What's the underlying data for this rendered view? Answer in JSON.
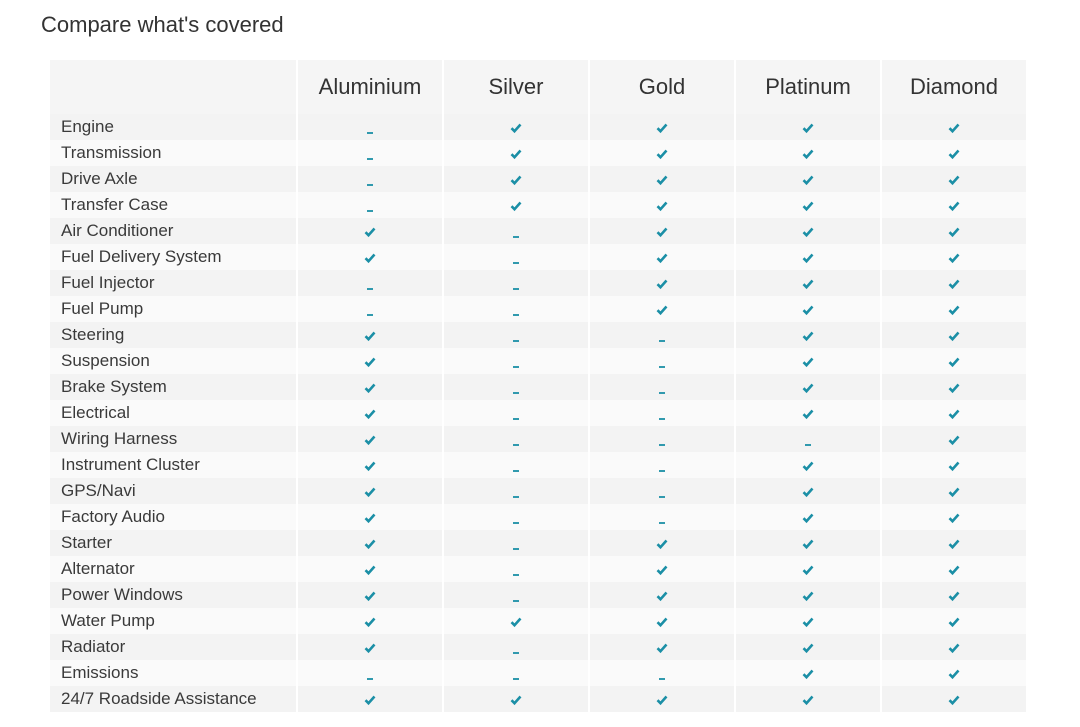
{
  "header": {
    "title": "Compare what's covered"
  },
  "table": {
    "columns": [
      "Aluminium",
      "Silver",
      "Gold",
      "Platinum",
      "Diamond"
    ],
    "rows": [
      {
        "label": "Engine",
        "covered": [
          false,
          true,
          true,
          true,
          true
        ]
      },
      {
        "label": "Transmission",
        "covered": [
          false,
          true,
          true,
          true,
          true
        ]
      },
      {
        "label": "Drive Axle",
        "covered": [
          false,
          true,
          true,
          true,
          true
        ]
      },
      {
        "label": "Transfer Case",
        "covered": [
          false,
          true,
          true,
          true,
          true
        ]
      },
      {
        "label": "Air Conditioner",
        "covered": [
          true,
          false,
          true,
          true,
          true
        ]
      },
      {
        "label": "Fuel Delivery System",
        "covered": [
          true,
          false,
          true,
          true,
          true
        ]
      },
      {
        "label": "Fuel Injector",
        "covered": [
          false,
          false,
          true,
          true,
          true
        ]
      },
      {
        "label": "Fuel Pump",
        "covered": [
          false,
          false,
          true,
          true,
          true
        ]
      },
      {
        "label": "Steering",
        "covered": [
          true,
          false,
          false,
          true,
          true
        ]
      },
      {
        "label": "Suspension",
        "covered": [
          true,
          false,
          false,
          true,
          true
        ]
      },
      {
        "label": "Brake System",
        "covered": [
          true,
          false,
          false,
          true,
          true
        ]
      },
      {
        "label": "Electrical",
        "covered": [
          true,
          false,
          false,
          true,
          true
        ]
      },
      {
        "label": "Wiring Harness",
        "covered": [
          true,
          false,
          false,
          false,
          true
        ]
      },
      {
        "label": "Instrument Cluster",
        "covered": [
          true,
          false,
          false,
          true,
          true
        ]
      },
      {
        "label": "GPS/Navi",
        "covered": [
          true,
          false,
          false,
          true,
          true
        ]
      },
      {
        "label": "Factory Audio",
        "covered": [
          true,
          false,
          false,
          true,
          true
        ]
      },
      {
        "label": "Starter",
        "covered": [
          true,
          false,
          true,
          true,
          true
        ]
      },
      {
        "label": "Alternator",
        "covered": [
          true,
          false,
          true,
          true,
          true
        ]
      },
      {
        "label": "Power Windows",
        "covered": [
          true,
          false,
          true,
          true,
          true
        ]
      },
      {
        "label": "Water Pump",
        "covered": [
          true,
          true,
          true,
          true,
          true
        ]
      },
      {
        "label": "Radiator",
        "covered": [
          true,
          false,
          true,
          true,
          true
        ]
      },
      {
        "label": "Emissions",
        "covered": [
          false,
          false,
          false,
          true,
          true
        ]
      },
      {
        "label": "24/7 Roadside Assistance",
        "covered": [
          true,
          true,
          true,
          true,
          true
        ]
      }
    ]
  }
}
